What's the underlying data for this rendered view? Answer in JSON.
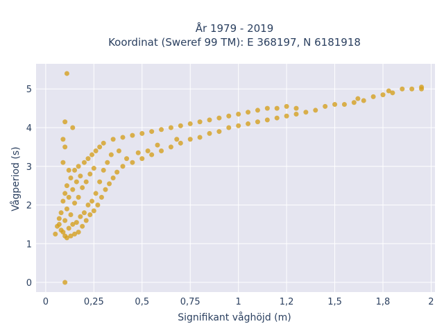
{
  "chart_data": {
    "type": "scatter",
    "title_line1": "År 1979 - 2019",
    "title_line2": "Koordinat (Sweref 99 TM): E 368197, N 6181918",
    "xlabel": "Signifikant våghöjd (m)",
    "ylabel": "Vågperiod (s)",
    "xlim": [
      -0.05,
      2.02
    ],
    "ylim": [
      -0.25,
      5.65
    ],
    "xticks": [
      {
        "value": 0,
        "label": "0"
      },
      {
        "value": 0.25,
        "label": "0,25"
      },
      {
        "value": 0.5,
        "label": "0,5"
      },
      {
        "value": 0.75,
        "label": "0,75"
      },
      {
        "value": 1,
        "label": "1"
      },
      {
        "value": 1.25,
        "label": "1,2"
      },
      {
        "value": 1.5,
        "label": "1,5"
      },
      {
        "value": 1.75,
        "label": "1,8"
      },
      {
        "value": 2,
        "label": "2"
      }
    ],
    "yticks": [
      {
        "value": 0,
        "label": "0"
      },
      {
        "value": 1,
        "label": "1"
      },
      {
        "value": 2,
        "label": "2"
      },
      {
        "value": 3,
        "label": "3"
      },
      {
        "value": 4,
        "label": "4"
      },
      {
        "value": 5,
        "label": "5"
      }
    ],
    "grid": true,
    "colors": {
      "marker": "#d4a020",
      "plot_bg": "#e5e5f0",
      "grid": "#ffffff",
      "text": "#2a3f5f"
    },
    "points": [
      [
        0.05,
        1.25
      ],
      [
        0.06,
        1.45
      ],
      [
        0.07,
        1.5
      ],
      [
        0.07,
        1.65
      ],
      [
        0.08,
        1.35
      ],
      [
        0.08,
        1.8
      ],
      [
        0.09,
        1.3
      ],
      [
        0.09,
        2.1
      ],
      [
        0.1,
        1.2
      ],
      [
        0.1,
        1.6
      ],
      [
        0.1,
        2.3
      ],
      [
        0.11,
        1.15
      ],
      [
        0.11,
        1.9
      ],
      [
        0.11,
        2.5
      ],
      [
        0.12,
        1.4
      ],
      [
        0.12,
        2.2
      ],
      [
        0.13,
        1.2
      ],
      [
        0.13,
        1.75
      ],
      [
        0.13,
        2.7
      ],
      [
        0.14,
        1.5
      ],
      [
        0.14,
        2.4
      ],
      [
        0.15,
        1.25
      ],
      [
        0.15,
        2.05
      ],
      [
        0.15,
        2.9
      ],
      [
        0.16,
        1.55
      ],
      [
        0.16,
        2.6
      ],
      [
        0.17,
        1.3
      ],
      [
        0.17,
        2.2
      ],
      [
        0.17,
        3.0
      ],
      [
        0.18,
        1.7
      ],
      [
        0.18,
        2.75
      ],
      [
        0.19,
        1.45
      ],
      [
        0.19,
        2.45
      ],
      [
        0.2,
        1.8
      ],
      [
        0.2,
        3.1
      ],
      [
        0.21,
        1.6
      ],
      [
        0.21,
        2.6
      ],
      [
        0.22,
        2.0
      ],
      [
        0.22,
        3.2
      ],
      [
        0.23,
        1.75
      ],
      [
        0.23,
        2.8
      ],
      [
        0.24,
        2.1
      ],
      [
        0.24,
        3.3
      ],
      [
        0.25,
        1.85
      ],
      [
        0.25,
        2.95
      ],
      [
        0.26,
        2.3
      ],
      [
        0.26,
        3.4
      ],
      [
        0.27,
        2.0
      ],
      [
        0.28,
        2.6
      ],
      [
        0.28,
        3.5
      ],
      [
        0.29,
        2.2
      ],
      [
        0.3,
        2.9
      ],
      [
        0.3,
        3.6
      ],
      [
        0.31,
        2.4
      ],
      [
        0.32,
        3.1
      ],
      [
        0.33,
        2.55
      ],
      [
        0.34,
        3.3
      ],
      [
        0.35,
        2.7
      ],
      [
        0.35,
        3.7
      ],
      [
        0.37,
        2.85
      ],
      [
        0.38,
        3.4
      ],
      [
        0.4,
        3.0
      ],
      [
        0.4,
        3.75
      ],
      [
        0.42,
        3.2
      ],
      [
        0.45,
        3.1
      ],
      [
        0.45,
        3.8
      ],
      [
        0.48,
        3.35
      ],
      [
        0.5,
        3.2
      ],
      [
        0.5,
        3.85
      ],
      [
        0.53,
        3.4
      ],
      [
        0.55,
        3.3
      ],
      [
        0.55,
        3.9
      ],
      [
        0.58,
        3.55
      ],
      [
        0.6,
        3.4
      ],
      [
        0.6,
        3.95
      ],
      [
        0.65,
        3.5
      ],
      [
        0.65,
        4.0
      ],
      [
        0.68,
        3.7
      ],
      [
        0.7,
        3.6
      ],
      [
        0.7,
        4.05
      ],
      [
        0.75,
        3.7
      ],
      [
        0.75,
        4.1
      ],
      [
        0.8,
        3.75
      ],
      [
        0.8,
        4.15
      ],
      [
        0.85,
        3.85
      ],
      [
        0.85,
        4.2
      ],
      [
        0.9,
        3.9
      ],
      [
        0.9,
        4.25
      ],
      [
        0.95,
        4.0
      ],
      [
        0.95,
        4.3
      ],
      [
        1.0,
        4.05
      ],
      [
        1.0,
        4.35
      ],
      [
        1.05,
        4.1
      ],
      [
        1.05,
        4.4
      ],
      [
        1.1,
        4.15
      ],
      [
        1.1,
        4.45
      ],
      [
        1.15,
        4.2
      ],
      [
        1.15,
        4.5
      ],
      [
        1.2,
        4.25
      ],
      [
        1.2,
        4.5
      ],
      [
        1.25,
        4.3
      ],
      [
        1.25,
        4.55
      ],
      [
        1.3,
        4.35
      ],
      [
        1.3,
        4.5
      ],
      [
        1.35,
        4.4
      ],
      [
        1.4,
        4.45
      ],
      [
        1.45,
        4.55
      ],
      [
        1.5,
        4.6
      ],
      [
        1.55,
        4.6
      ],
      [
        1.6,
        4.65
      ],
      [
        1.62,
        4.75
      ],
      [
        1.65,
        4.7
      ],
      [
        1.7,
        4.8
      ],
      [
        1.75,
        4.85
      ],
      [
        1.78,
        4.95
      ],
      [
        1.8,
        4.9
      ],
      [
        1.85,
        5.0
      ],
      [
        1.9,
        5.0
      ],
      [
        1.95,
        5.05
      ],
      [
        1.95,
        5.0
      ],
      [
        0.11,
        5.4
      ],
      [
        0.1,
        4.15
      ],
      [
        0.14,
        4.0
      ],
      [
        0.09,
        3.7
      ],
      [
        0.1,
        3.5
      ],
      [
        0.1,
        0.0
      ],
      [
        0.12,
        2.9
      ],
      [
        0.09,
        3.1
      ]
    ]
  }
}
